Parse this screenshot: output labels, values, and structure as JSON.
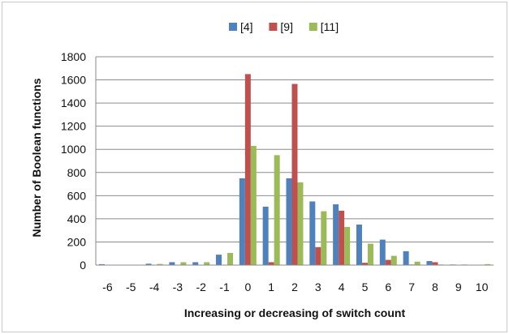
{
  "chart_data": {
    "type": "bar",
    "title": "",
    "xlabel": "Increasing or decreasing of switch count",
    "ylabel": "Number  of  Boolean functions",
    "categories": [
      "-6",
      "-5",
      "-4",
      "-3",
      "-2",
      "-1",
      "0",
      "1",
      "2",
      "3",
      "4",
      "5",
      "6",
      "7",
      "8",
      "9",
      "10"
    ],
    "ylim": [
      0,
      1800
    ],
    "yticks": [
      "0",
      "200",
      "400",
      "600",
      "800",
      "1000",
      "1200",
      "1400",
      "1600",
      "1800"
    ],
    "grid": true,
    "legend_position": "top-center",
    "series": [
      {
        "name": "[4]",
        "color": "#4F81BD",
        "values": [
          8,
          0,
          12,
          25,
          25,
          90,
          750,
          505,
          750,
          550,
          525,
          350,
          220,
          120,
          35,
          5,
          0
        ]
      },
      {
        "name": "[9]",
        "color": "#C0504D",
        "values": [
          0,
          0,
          0,
          0,
          0,
          0,
          1650,
          25,
          1565,
          155,
          470,
          20,
          45,
          5,
          25,
          0,
          0
        ]
      },
      {
        "name": "[11]",
        "color": "#9BBB59",
        "values": [
          0,
          0,
          10,
          25,
          25,
          105,
          1030,
          950,
          715,
          465,
          330,
          185,
          80,
          30,
          5,
          5,
          8
        ]
      }
    ]
  }
}
